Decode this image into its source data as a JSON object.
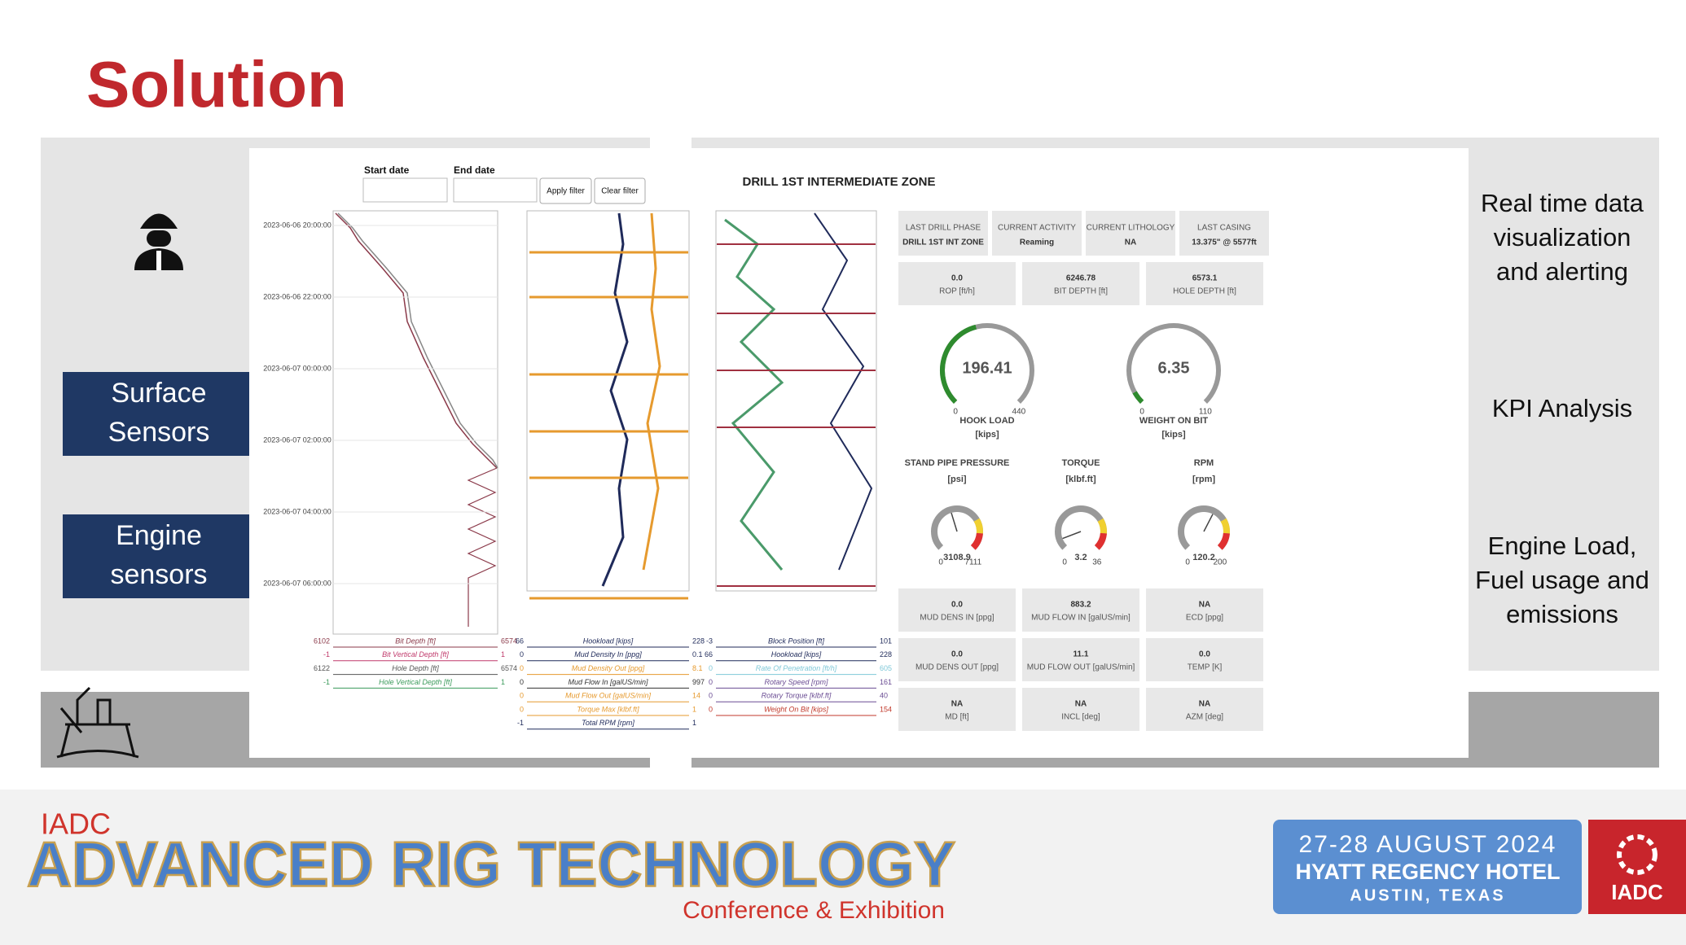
{
  "title": "Solution",
  "left_labels": [
    [
      "Surface",
      "Sensors"
    ],
    [
      "Engine",
      "sensors"
    ]
  ],
  "right_labels": [
    [
      "Real time data",
      "visualization",
      "and alerting"
    ],
    [
      "KPI Analysis"
    ],
    [
      "Engine Load,",
      "Fuel usage and",
      "emissions"
    ]
  ],
  "dashboard": {
    "filters": {
      "start_label": "Start date",
      "end_label": "End date",
      "apply": "Apply filter",
      "clear": "Clear filter"
    },
    "zone_title": "DRILL 1ST INTERMEDIATE ZONE",
    "times": [
      "2023-06-06 20:00:00",
      "2023-06-06 22:00:00",
      "2023-06-07 00:00:00",
      "2023-06-07 02:00:00",
      "2023-06-07 04:00:00",
      "2023-06-07 06:00:00"
    ],
    "tracks": [
      [
        {
          "min": "6102",
          "label": "Bit Depth [ft]",
          "max": "6574",
          "color": "#8b3a4a"
        },
        {
          "min": "-1",
          "label": "Bit Vertical Depth [ft]",
          "max": "1",
          "color": "#c0396b"
        },
        {
          "min": "6122",
          "label": "Hole Depth [ft]",
          "max": "6574",
          "color": "#555555"
        },
        {
          "min": "-1",
          "label": "Hole Vertical Depth [ft]",
          "max": "1",
          "color": "#3a9a5a"
        }
      ],
      [
        {
          "min": "66",
          "label": "Hookload [kips]",
          "max": "228",
          "color": "#1f2a5a"
        },
        {
          "min": "0",
          "label": "Mud Density In [ppg]",
          "max": "0.1",
          "color": "#1f2a5a"
        },
        {
          "min": "0",
          "label": "Mud Density Out [ppg]",
          "max": "8.1",
          "color": "#e69a2e"
        },
        {
          "min": "0",
          "label": "Mud Flow In [galUS/min]",
          "max": "997",
          "color": "#333333"
        },
        {
          "min": "0",
          "label": "Mud Flow Out [galUS/min]",
          "max": "14",
          "color": "#e69a2e"
        },
        {
          "min": "0",
          "label": "Torque Max [klbf.ft]",
          "max": "1",
          "color": "#e69a2e"
        },
        {
          "min": "-1",
          "label": "Total RPM [rpm]",
          "max": "1",
          "color": "#1f2a5a"
        }
      ],
      [
        {
          "min": "-3",
          "label": "Block Position [ft]",
          "max": "101",
          "color": "#1f2a5a"
        },
        {
          "min": "66",
          "label": "Hookload [kips]",
          "max": "228",
          "color": "#1f2a5a"
        },
        {
          "min": "0",
          "label": "Rate Of Penetration [ft/h]",
          "max": "605",
          "color": "#7fc8d8"
        },
        {
          "min": "0",
          "label": "Rotary Speed [rpm]",
          "max": "161",
          "color": "#6a4c93"
        },
        {
          "min": "0",
          "label": "Rotary Torque [klbf.ft]",
          "max": "40",
          "color": "#6a4c93"
        },
        {
          "min": "0",
          "label": "Weight On Bit [kips]",
          "max": "154",
          "color": "#c0392b"
        }
      ]
    ],
    "status_cards": [
      {
        "label": "LAST DRILL PHASE",
        "value": "DRILL 1ST INT ZONE"
      },
      {
        "label": "CURRENT ACTIVITY",
        "value": "Reaming"
      },
      {
        "label": "CURRENT LITHOLOGY",
        "value": "NA"
      },
      {
        "label": "LAST CASING",
        "value": "13.375\" @ 5577ft"
      }
    ],
    "top_metrics": [
      {
        "value": "0.0",
        "label": "ROP [ft/h]"
      },
      {
        "value": "6246.78",
        "label": "BIT DEPTH [ft]"
      },
      {
        "value": "6573.1",
        "label": "HOLE DEPTH [ft]"
      }
    ],
    "gauges": [
      {
        "label": "HOOK LOAD",
        "unit": "[kips]",
        "value": 196.41,
        "min": 0,
        "max": 440,
        "size": "large"
      },
      {
        "label": "WEIGHT ON BIT",
        "unit": "[kips]",
        "value": 6.35,
        "min": 0,
        "max": 110,
        "size": "large"
      },
      {
        "label": "STAND PIPE PRESSURE",
        "unit": "[psi]",
        "value": 3108.9,
        "min": 0,
        "max": 7111,
        "size": "small"
      },
      {
        "label": "TORQUE",
        "unit": "[klbf.ft]",
        "value": 3.2,
        "min": 0,
        "max": 36,
        "size": "small"
      },
      {
        "label": "RPM",
        "unit": "[rpm]",
        "value": 120.2,
        "min": 0,
        "max": 200,
        "size": "small"
      }
    ],
    "bottom_metrics": [
      [
        {
          "value": "0.0",
          "label": "MUD DENS IN [ppg]"
        },
        {
          "value": "883.2",
          "label": "MUD FLOW IN [galUS/min]"
        },
        {
          "value": "NA",
          "label": "ECD [ppg]"
        }
      ],
      [
        {
          "value": "0.0",
          "label": "MUD DENS OUT [ppg]"
        },
        {
          "value": "11.1",
          "label": "MUD FLOW OUT [galUS/min]"
        },
        {
          "value": "0.0",
          "label": "TEMP [K]"
        }
      ],
      [
        {
          "value": "NA",
          "label": "MD [ft]"
        },
        {
          "value": "NA",
          "label": "INCL [deg]"
        },
        {
          "value": "NA",
          "label": "AZM [deg]"
        }
      ]
    ]
  },
  "footer": {
    "org": "IADC",
    "event": "ADVANCED RIG TECHNOLOGY",
    "subtitle": "Conference & Exhibition",
    "dates": "27-28 AUGUST 2024",
    "venue": "HYATT REGENCY HOTEL",
    "city": "AUSTIN, TEXAS",
    "logo": "IADC"
  }
}
